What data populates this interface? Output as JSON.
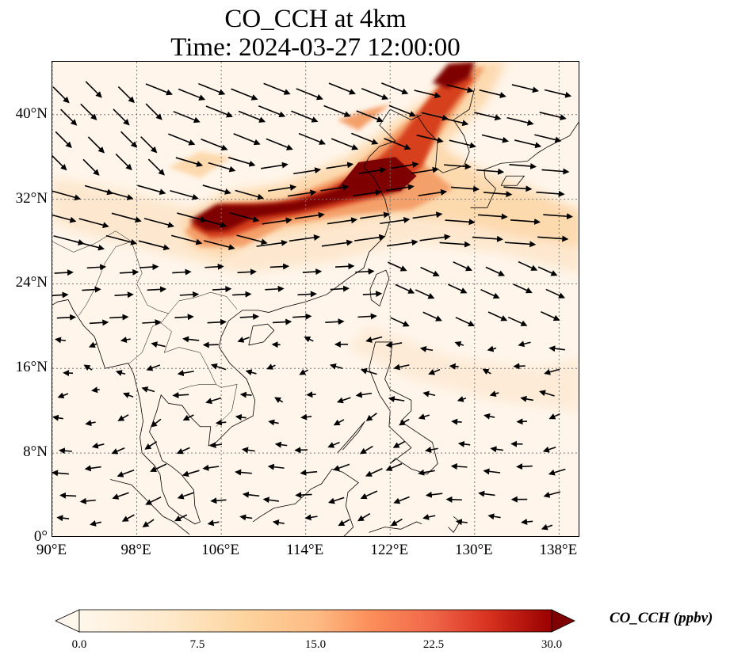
{
  "title": {
    "line1": "CO_CCH at 4km",
    "line2": "Time: 2024-03-27 12:00:00"
  },
  "map": {
    "type": "filled-contour map with wind vectors",
    "projection": "PlateCarree",
    "lon_range": [
      90,
      140
    ],
    "lat_range": [
      0,
      45
    ],
    "gridlines": "dotted",
    "x_ticks": [
      "90°E",
      "98°E",
      "106°E",
      "114°E",
      "122°E",
      "130°E",
      "138°E"
    ],
    "x_tick_values": [
      90,
      98,
      106,
      114,
      122,
      130,
      138
    ],
    "y_ticks": [
      "0°",
      "8°N",
      "16°N",
      "24°N",
      "32°N",
      "40°N"
    ],
    "y_tick_values": [
      0,
      8,
      16,
      24,
      32,
      40
    ],
    "colormap": "OrRd",
    "plume_colors": {
      "low": "#fff5ea",
      "light": "#fdd9ae",
      "mid": "#f4a06a",
      "high": "#d6411f",
      "max": "#7f0000"
    }
  },
  "colorbar": {
    "label": "CO_CCH (ppbv)",
    "ticks": [
      "0.0",
      "7.5",
      "15.0",
      "22.5",
      "30.0"
    ],
    "tick_values": [
      0,
      7.5,
      15,
      22.5,
      30
    ],
    "range": [
      0,
      30
    ],
    "extend": "both"
  }
}
